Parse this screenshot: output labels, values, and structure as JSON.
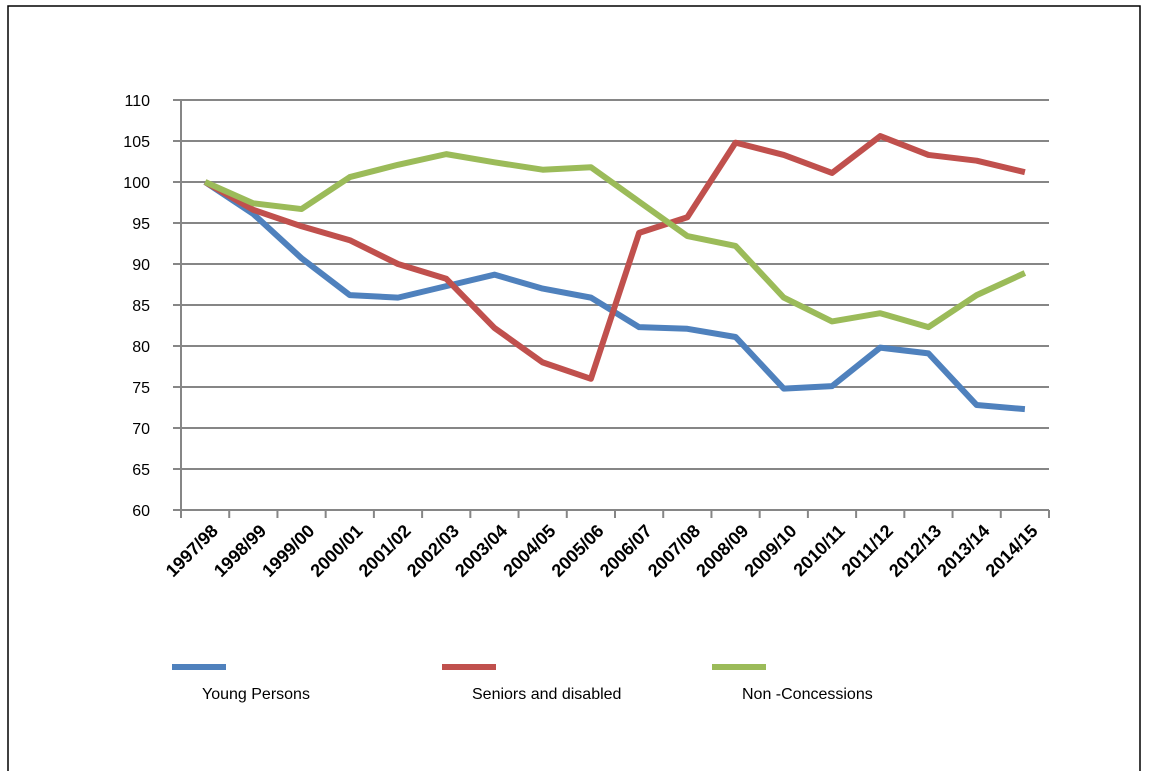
{
  "chart_data": {
    "type": "line",
    "categories": [
      "1997/98",
      "1998/99",
      "1999/00",
      "2000/01",
      "2001/02",
      "2002/03",
      "2003/04",
      "2004/05",
      "2005/06",
      "2006/07",
      "2007/08",
      "2008/09",
      "2009/10",
      "2010/11",
      "2011/12",
      "2012/13",
      "2013/14",
      "2014/15"
    ],
    "series": [
      {
        "name": "Young Persons",
        "color": "#4f81bd",
        "values": [
          100,
          96.1,
          90.7,
          86.2,
          85.9,
          87.3,
          88.7,
          87.0,
          85.9,
          82.3,
          82.1,
          81.1,
          74.8,
          75.1,
          79.8,
          79.1,
          72.8,
          72.3
        ]
      },
      {
        "name": "Seniors and disabled",
        "color": "#c0504d",
        "values": [
          100,
          96.6,
          94.6,
          92.9,
          90.0,
          88.2,
          82.2,
          78.0,
          76.0,
          93.8,
          95.7,
          104.8,
          103.3,
          101.1,
          105.6,
          103.3,
          102.6,
          101.2
        ]
      },
      {
        "name": "Non -Concessions",
        "color": "#9bbb59",
        "values": [
          100,
          97.4,
          96.7,
          100.6,
          102.1,
          103.4,
          102.4,
          101.5,
          101.8,
          97.6,
          93.4,
          92.2,
          85.9,
          83.0,
          84.0,
          82.3,
          86.2,
          88.9
        ]
      }
    ],
    "ylim": [
      60,
      110
    ],
    "yticks": [
      60,
      65,
      70,
      75,
      80,
      85,
      90,
      95,
      100,
      105,
      110
    ],
    "grid": true
  }
}
